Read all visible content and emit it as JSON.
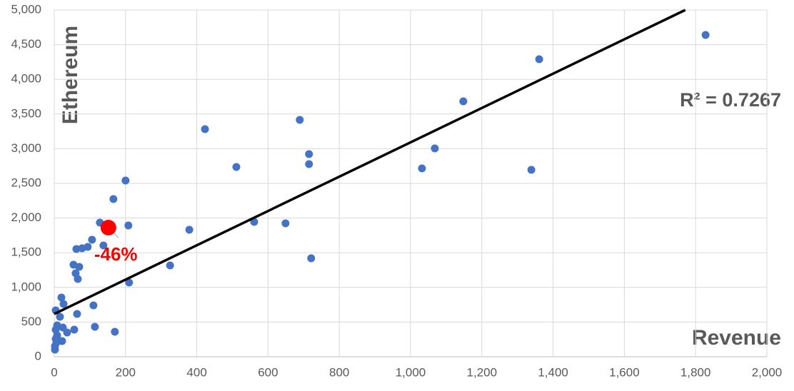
{
  "chart_data": {
    "type": "scatter",
    "y_label": "Ethereum",
    "x_label": "Revenue",
    "annotation": "R² = 0.7267",
    "x": [
      1828,
      1361,
      1148,
      689,
      423,
      1068,
      715,
      715,
      511,
      1032,
      1339,
      200,
      166,
      128,
      561,
      649,
      208,
      379,
      106,
      94,
      78,
      62,
      138,
      721,
      54,
      70,
      60,
      66,
      325,
      210,
      20,
      26,
      110,
      4,
      64,
      16,
      8,
      24,
      114,
      56,
      36,
      170,
      8,
      4,
      22,
      6,
      2,
      2,
      12,
      4
    ],
    "y": [
      4640,
      4290,
      3683,
      3416,
      3282,
      3004,
      2922,
      2778,
      2737,
      2716,
      2695,
      2541,
      2274,
      1934,
      1944,
      1924,
      1893,
      1831,
      1687,
      1584,
      1564,
      1553,
      1605,
      1420,
      1327,
      1296,
      1204,
      1121,
      1317,
      1070,
      854,
      761,
      741,
      669,
      617,
      576,
      453,
      422,
      432,
      391,
      350,
      360,
      309,
      257,
      226,
      206,
      154,
      103,
      226,
      390
    ],
    "color": "#4472c4",
    "highlight": {
      "x": 152,
      "y": 1862,
      "label": "-46%",
      "color": "#ff0000"
    },
    "trendline": {
      "x": [
        0,
        1771
      ],
      "y": [
        617,
        5000
      ],
      "color": "#000000"
    },
    "xlim": [
      0,
      2000
    ],
    "ylim": [
      0,
      5000
    ],
    "xticks": [
      0,
      200,
      400,
      600,
      800,
      {
        "value": 1000,
        "label": "1,000"
      },
      {
        "value": 1200,
        "label": "1,200"
      },
      {
        "value": 1400,
        "label": "1,400"
      },
      {
        "value": 1600,
        "label": "1,600"
      },
      {
        "value": 1800,
        "label": "1,800"
      },
      {
        "value": 2000,
        "label": "2,000"
      }
    ],
    "yticks": [
      0,
      500,
      {
        "value": 1000,
        "label": "1,000"
      },
      {
        "value": 1500,
        "label": "1,500"
      },
      {
        "value": 2000,
        "label": "2,000"
      },
      {
        "value": 2500,
        "label": "2,500"
      },
      {
        "value": 3000,
        "label": "3,000"
      },
      {
        "value": 3500,
        "label": "3,500"
      },
      {
        "value": 4000,
        "label": "4,000"
      },
      {
        "value": 4500,
        "label": "4,500"
      },
      {
        "value": 5000,
        "label": "5,000"
      }
    ],
    "grid": true
  }
}
